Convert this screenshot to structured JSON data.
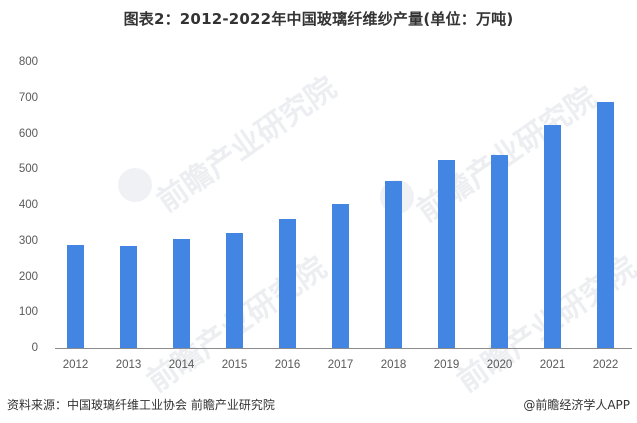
{
  "title": "图表2：2012-2022年中国玻璃纤维纱产量(单位：万吨)",
  "chart_data": {
    "type": "bar",
    "title": "图表2：2012-2022年中国玻璃纤维纱产量(单位：万吨)",
    "xlabel": "",
    "ylabel": "",
    "unit": "万吨",
    "categories": [
      "2012",
      "2013",
      "2014",
      "2015",
      "2016",
      "2017",
      "2018",
      "2019",
      "2020",
      "2021",
      "2022"
    ],
    "values": [
      288,
      284,
      305,
      323,
      362,
      404,
      468,
      527,
      541,
      624,
      687
    ],
    "ylim": [
      0,
      800
    ],
    "yticks": [
      "0",
      "100",
      "200",
      "300",
      "400",
      "500",
      "600",
      "700",
      "800"
    ],
    "grid": false,
    "legend": "none",
    "bar_color": "#4285E3"
  },
  "footer": {
    "source": "资料来源：中国玻璃纤维工业协会 前瞻产业研究院",
    "credit": "@前瞻经济学人APP"
  },
  "watermark": {
    "text": "前瞻产业研究院"
  }
}
